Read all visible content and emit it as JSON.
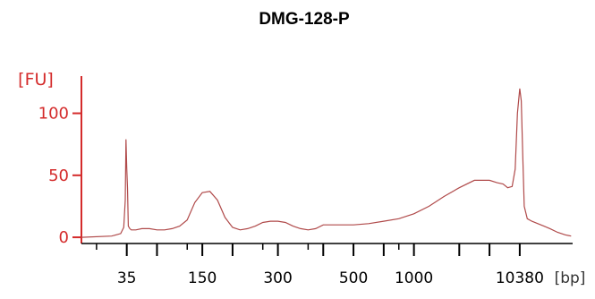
{
  "chart_data": {
    "type": "line",
    "title": "DMG-128-P",
    "ylabel": "[FU]",
    "xunit": "[bp]",
    "ylim": [
      -5,
      130
    ],
    "yticks": [
      0,
      50,
      100
    ],
    "xtick_labels": [
      {
        "pos": 3,
        "label": "35"
      },
      {
        "pos": 8,
        "label": "150"
      },
      {
        "pos": 13,
        "label": "300"
      },
      {
        "pos": 18,
        "label": "500"
      },
      {
        "pos": 22,
        "label": "1000"
      },
      {
        "pos": 29,
        "label": "10380"
      }
    ],
    "xlim": [
      0,
      32.5
    ],
    "major_ticks": [
      3,
      5,
      8,
      10,
      13,
      16,
      18,
      20,
      22,
      25,
      27,
      29
    ],
    "minor_ticks": [
      1,
      7,
      12,
      15,
      21
    ],
    "x": [
      0,
      2,
      2.6,
      2.8,
      2.9,
      2.95,
      3.0,
      3.05,
      3.1,
      3.2,
      3.3,
      3.6,
      4,
      4.5,
      5,
      5.5,
      6,
      6.5,
      7,
      7.5,
      8,
      8.5,
      9,
      9.5,
      10,
      10.5,
      11,
      11.5,
      12,
      12.5,
      13,
      13.5,
      14,
      14.5,
      15,
      15.5,
      16,
      17,
      18,
      19,
      20,
      21,
      22,
      23,
      24,
      25,
      26,
      27,
      27.5,
      27.9,
      28.2,
      28.5,
      28.7,
      28.85,
      29.0,
      29.1,
      29.2,
      29.3,
      29.5,
      29.8,
      30.2,
      30.6,
      31,
      31.5,
      32,
      32.4
    ],
    "y": [
      0,
      1,
      3,
      8,
      30,
      79,
      55,
      40,
      9,
      7,
      6,
      6,
      7,
      7,
      6,
      6,
      7,
      9,
      14,
      28,
      36,
      37,
      30,
      16,
      8,
      6,
      7,
      9,
      12,
      13,
      13,
      12,
      9,
      7,
      6,
      7,
      10,
      10,
      10,
      11,
      13,
      15,
      19,
      25,
      33,
      40,
      46,
      46,
      44,
      43,
      40,
      41,
      55,
      100,
      120,
      110,
      65,
      25,
      15,
      13,
      11,
      9,
      7,
      4,
      2,
      1
    ],
    "line_color": "#b04a4a",
    "axis_color": "#d42b2b"
  }
}
